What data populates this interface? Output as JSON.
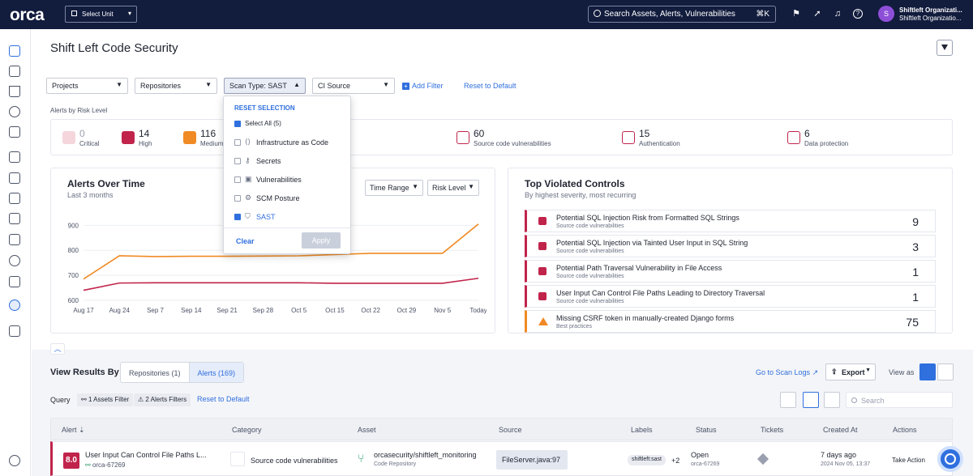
{
  "app": {
    "logo": "orca"
  },
  "topbar": {
    "unit_select": "Select Unit",
    "search_placeholder": "Search Assets, Alerts, Vulnerabilities",
    "search_shortcut": "⌘K",
    "avatar_initial": "S",
    "org_name": "Shiftleft Organizati...",
    "org_sub": "Shiftleft Organizatio..."
  },
  "page": {
    "title": "Shift Left Code Security"
  },
  "filters": {
    "projects": "Projects",
    "repositories": "Repositories",
    "scan_type": "Scan Type: SAST",
    "ci_source": "CI Source",
    "add_filter": "Add Filter",
    "reset": "Reset to Default"
  },
  "scan_type_dropdown": {
    "reset_selection": "RESET SELECTION",
    "select_all": "Select All (5)",
    "options": [
      {
        "label": "Infrastructure as Code",
        "checked": false
      },
      {
        "label": "Secrets",
        "checked": false
      },
      {
        "label": "Vulnerabilities",
        "checked": false
      },
      {
        "label": "SCM Posture",
        "checked": false
      },
      {
        "label": "SAST",
        "checked": true
      }
    ],
    "clear": "Clear",
    "apply": "Apply"
  },
  "risk": {
    "label": "Alerts by Risk Level",
    "items": [
      {
        "value": "0",
        "label": "Critical"
      },
      {
        "value": "14",
        "label": "High"
      },
      {
        "value": "116",
        "label": "Medium"
      },
      {
        "value": "60",
        "label": "Source code vulnerabilities"
      },
      {
        "value": "15",
        "label": "Authentication"
      },
      {
        "value": "6",
        "label": "Data protection"
      }
    ]
  },
  "alerts_over_time": {
    "title": "Alerts Over Time",
    "subtitle": "Last 3 months",
    "time_range": "Time Range",
    "risk_level": "Risk Level"
  },
  "chart_data": {
    "type": "line",
    "title": "Alerts Over Time",
    "x": [
      "Aug 17",
      "Aug 24",
      "Sep 7",
      "Sep 14",
      "Sep 21",
      "Sep 28",
      "Oct 5",
      "Oct 15",
      "Oct 22",
      "Oct 29",
      "Nov 5",
      "Today"
    ],
    "yticks": [
      600,
      700,
      800,
      900
    ],
    "ylim": [
      590,
      940
    ],
    "series": [
      {
        "color": "#f08a24",
        "values": [
          685,
          778,
          775,
          776,
          776,
          777,
          778,
          783,
          788,
          788,
          788,
          905
        ]
      },
      {
        "color": "#c0244b",
        "values": [
          640,
          669,
          670,
          670,
          670,
          670,
          670,
          668,
          668,
          668,
          668,
          688
        ]
      }
    ]
  },
  "top_violated": {
    "title": "Top Violated Controls",
    "subtitle": "By highest severity, most recurring",
    "rows": [
      {
        "title": "Potential SQL Injection Risk from Formatted SQL Strings",
        "sub": "Source code vulnerabilities",
        "count": "9",
        "level": "high"
      },
      {
        "title": "Potential SQL Injection via Tainted User Input in SQL String",
        "sub": "Source code vulnerabilities",
        "count": "3",
        "level": "high"
      },
      {
        "title": "Potential Path Traversal Vulnerability in File Access",
        "sub": "Source code vulnerabilities",
        "count": "1",
        "level": "high"
      },
      {
        "title": "User Input Can Control File Paths Leading to Directory Traversal",
        "sub": "Source code vulnerabilities",
        "count": "1",
        "level": "high"
      },
      {
        "title": "Missing CSRF token in manually-created Django forms",
        "sub": "Best practices",
        "count": "75",
        "level": "medium"
      }
    ]
  },
  "results": {
    "view_by": "View Results By",
    "tab_repos": "Repositories (1)",
    "tab_alerts": "Alerts (169)",
    "go_to_scan_logs": "Go to Scan Logs",
    "export": "Export",
    "view_as": "View as",
    "query": "Query",
    "chip_assets": "1 Assets Filter",
    "chip_alerts": "2 Alerts Filters",
    "reset": "Reset to Default",
    "search_placeholder": "Search",
    "columns": [
      "Alert",
      "Category",
      "Asset",
      "Source",
      "Labels",
      "Status",
      "Tickets",
      "Created At",
      "Actions"
    ],
    "row": {
      "score": "8.0",
      "alert": "User Input Can Control File Paths L...",
      "alert_id": "orca-67269",
      "category": "Source code vulnerabilities",
      "asset": "orcasecurity/shiftleft_monitoring",
      "asset_type": "Code Repository",
      "source": "FileServer.java:97",
      "label": "shiftleft:sast",
      "label_more": "+2",
      "status": "Open",
      "status_id": "orca-67269",
      "created": "7 days ago",
      "created_date": "2024 Nov 05, 13:37",
      "action": "Take Action"
    }
  },
  "colors": {
    "accent": "#2f6fde",
    "high": "#c0244b",
    "medium": "#f08a24",
    "nav": "#121c3d"
  }
}
